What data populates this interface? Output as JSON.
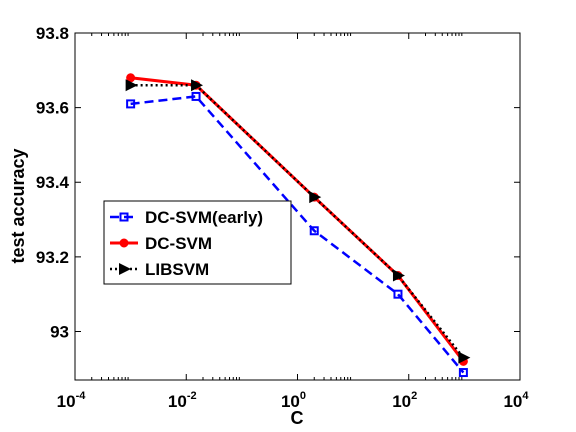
{
  "chart_data": {
    "type": "line",
    "xscale": "log",
    "xlim": [
      0.0001,
      10000
    ],
    "ylim": [
      92.87,
      93.8
    ],
    "xlabel": "C",
    "ylabel": "test accuracy",
    "x_ticks": [
      {
        "base": "10",
        "exp": "-4"
      },
      {
        "base": "10",
        "exp": "-2"
      },
      {
        "base": "10",
        "exp": "0"
      },
      {
        "base": "10",
        "exp": "2"
      },
      {
        "base": "10",
        "exp": "4"
      }
    ],
    "y_ticks": [
      "93",
      "93.2",
      "93.4",
      "93.6",
      "93.8"
    ],
    "legend_placement": "center-left",
    "series": [
      {
        "name": "DC-SVM(early)",
        "color": "#0000ff",
        "line": "dashed",
        "marker": "square",
        "x": [
          0.001,
          0.015,
          2,
          64,
          960
        ],
        "y": [
          93.61,
          93.63,
          93.27,
          93.1,
          92.89
        ]
      },
      {
        "name": "DC-SVM",
        "color": "#ff0000",
        "line": "solid",
        "marker": "circle",
        "x": [
          0.001,
          0.015,
          2,
          64,
          960
        ],
        "y": [
          93.68,
          93.66,
          93.36,
          93.15,
          92.92
        ]
      },
      {
        "name": "LIBSVM",
        "color": "#000000",
        "line": "dotted",
        "marker": "triangle-right",
        "x": [
          0.001,
          0.015,
          2,
          64,
          960
        ],
        "y": [
          93.66,
          93.66,
          93.36,
          93.15,
          92.93
        ]
      }
    ]
  }
}
